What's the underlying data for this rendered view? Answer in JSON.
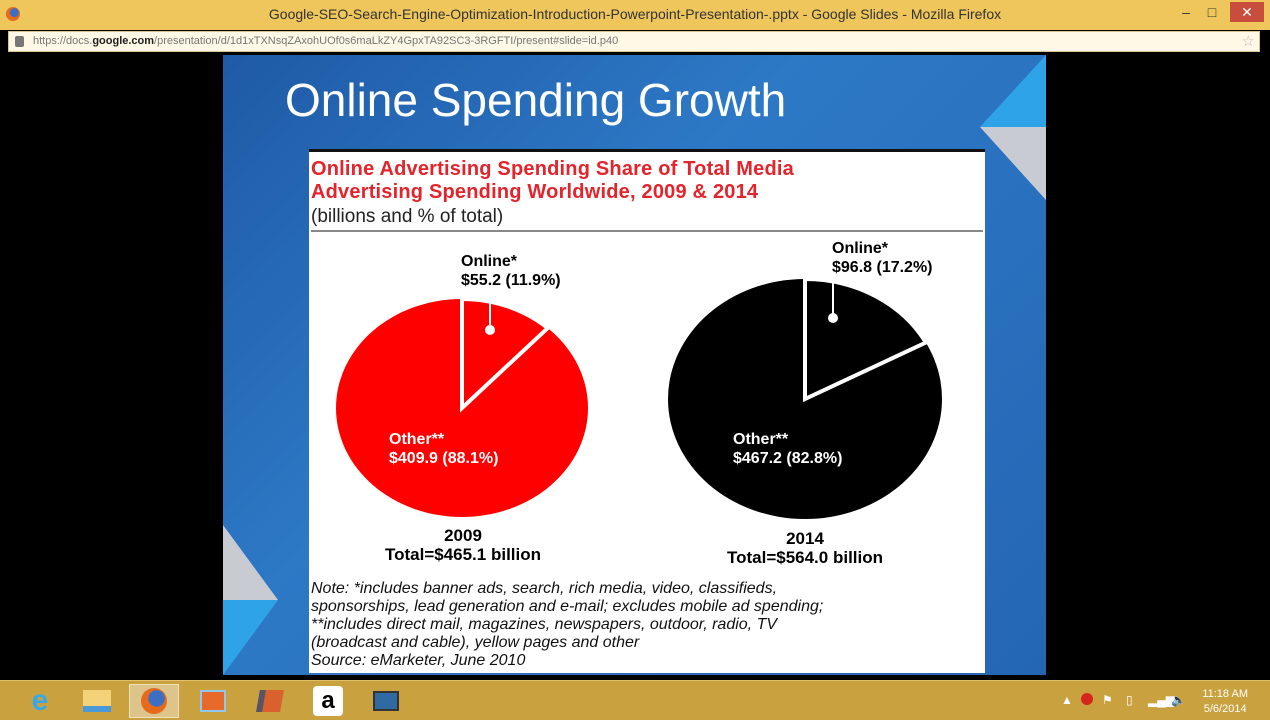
{
  "window": {
    "title": "Google-SEO-Search-Engine-Optimization-Introduction-Powerpoint-Presentation-.pptx - Google Slides - Mozilla Firefox",
    "minimize": "–",
    "maximize": "□",
    "close": "✕"
  },
  "address": {
    "prefix": "https://docs.",
    "domain": "google.com",
    "path": "/presentation/d/1d1xTXNsqZAxohUOf0s6maLkZY4GpxTA92SC3-3RGFTI/present#slide=id.p40"
  },
  "slide": {
    "title": "Online Spending Growth"
  },
  "chart_data": {
    "type": "pie",
    "title": "Online Advertising Spending Share of Total Media Advertising Spending Worldwide, 2009 & 2014",
    "title_lines": [
      "Online Advertising Spending Share of Total Media",
      "Advertising Spending Worldwide, 2009 & 2014"
    ],
    "subtitle": "(billions and % of total)",
    "pies": [
      {
        "year": "2009",
        "total_label": "Total=$465.1 billion",
        "color": "#ff0000",
        "slices": [
          {
            "name": "Online*",
            "value": 55.2,
            "percent": 11.9,
            "label": "$55.2 (11.9%)"
          },
          {
            "name": "Other**",
            "value": 409.9,
            "percent": 88.1,
            "label": "$409.9 (88.1%)"
          }
        ]
      },
      {
        "year": "2014",
        "total_label": "Total=$564.0 billion",
        "color": "#000000",
        "slices": [
          {
            "name": "Online*",
            "value": 96.8,
            "percent": 17.2,
            "label": "$96.8 (17.2%)"
          },
          {
            "name": "Other**",
            "value": 467.2,
            "percent": 82.8,
            "label": "$467.2 (82.8%)"
          }
        ]
      }
    ],
    "note_lines": [
      "Note: *includes banner ads, search, rich media, video, classifieds,",
      "sponsorships, lead generation and e-mail; excludes mobile ad spending;",
      "**includes direct mail, magazines, newspapers, outdoor, radio, TV",
      "(broadcast and cable), yellow pages and other",
      "Source: eMarketer, June 2010"
    ]
  },
  "taskbar": {
    "apps": [
      "Internet Explorer",
      "File Explorer",
      "Firefox",
      "Photos",
      "Media",
      "Amazon",
      "Remote Desktop"
    ],
    "tray_time": "11:18 AM",
    "tray_date": "5/6/2014"
  }
}
